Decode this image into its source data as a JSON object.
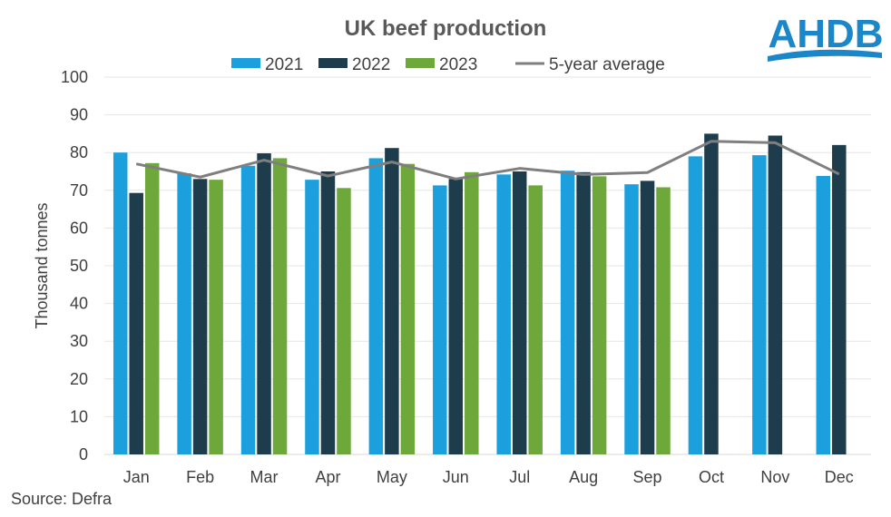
{
  "chart_data": {
    "type": "bar",
    "title": "UK beef production",
    "ylabel": "Thousand tonnes",
    "xlabel": "",
    "ylim": [
      0,
      100
    ],
    "yticks": [
      0,
      10,
      20,
      30,
      40,
      50,
      60,
      70,
      80,
      90,
      100
    ],
    "grid": true,
    "legend_position": "top",
    "categories": [
      "Jan",
      "Feb",
      "Mar",
      "Apr",
      "May",
      "Jun",
      "Jul",
      "Aug",
      "Sep",
      "Oct",
      "Nov",
      "Dec"
    ],
    "series": [
      {
        "name": "2021",
        "type": "bar",
        "color": "#1ba0dd",
        "values": [
          80.0,
          74.5,
          76.5,
          72.8,
          78.5,
          71.3,
          74.2,
          75.2,
          71.6,
          79.0,
          79.3,
          73.8
        ]
      },
      {
        "name": "2022",
        "type": "bar",
        "color": "#1d3c4c",
        "values": [
          69.3,
          73.0,
          79.8,
          75.0,
          81.2,
          73.0,
          75.0,
          74.8,
          72.5,
          85.0,
          84.5,
          82.0
        ]
      },
      {
        "name": "2023",
        "type": "bar",
        "color": "#6ea73a",
        "values": [
          77.2,
          72.8,
          78.5,
          70.6,
          77.0,
          74.8,
          71.3,
          73.7,
          70.8,
          null,
          null,
          null
        ]
      },
      {
        "name": "5-year average",
        "type": "line",
        "color": "#7f7f7f",
        "values": [
          77.0,
          73.5,
          78.0,
          73.8,
          77.5,
          73.0,
          75.8,
          74.2,
          74.7,
          83.0,
          82.6,
          74.3
        ]
      }
    ]
  },
  "source": "Source: Defra",
  "logo": {
    "text": "AHDB",
    "color": "#1b87c9"
  }
}
